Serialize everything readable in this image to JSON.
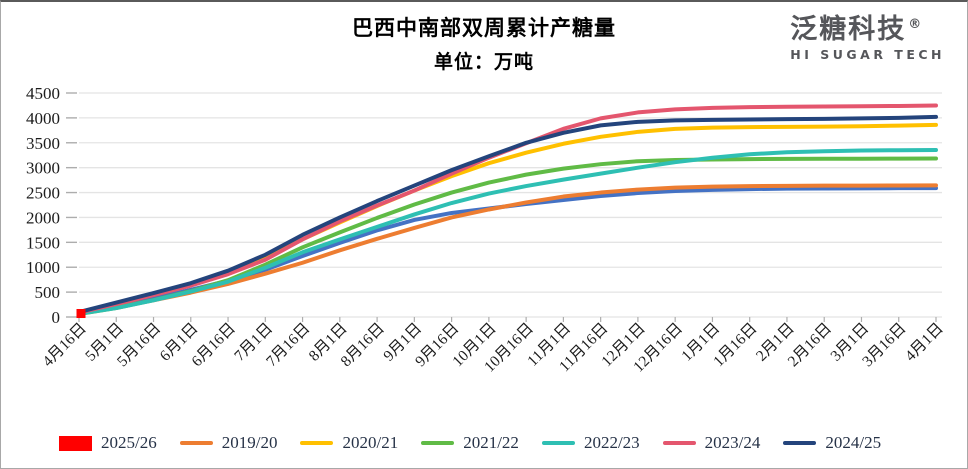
{
  "header": {
    "title": "巴西中南部双周累计产糖量",
    "subtitle": "单位：万吨"
  },
  "logo": {
    "name_cn": "泛糖科技",
    "trademark": "®",
    "name_en": "HI SUGAR TECH"
  },
  "chart_data": {
    "type": "line",
    "title": "巴西中南部双周累计产糖量",
    "unit": "万吨",
    "grid": "horizontal",
    "legend_position": "bottom",
    "x_axis": {
      "labels": [
        "4月16日",
        "5月1日",
        "5月16日",
        "6月1日",
        "6月16日",
        "7月1日",
        "7月16日",
        "8月1日",
        "8月16日",
        "9月1日",
        "9月16日",
        "10月1日",
        "10月16日",
        "11月1日",
        "11月16日",
        "12月1日",
        "12月16日",
        "1月1日",
        "1月16日",
        "2月1日",
        "2月16日",
        "3月1日",
        "3月16日",
        "4月1日"
      ]
    },
    "y_axis": {
      "min": 0,
      "max": 4500,
      "tick_step": 500
    },
    "colors": {
      "grid": "#e4e4e4",
      "axis_tick": "#adadad",
      "axis_label": "#1c1c1c",
      "legend_text": "#263247"
    },
    "series": [
      {
        "name": "2025/26",
        "color": "#ff0000",
        "swatch": "box",
        "marker": "square",
        "legend": true,
        "values": [
          70,
          null,
          null,
          null,
          null,
          null,
          null,
          null,
          null,
          null,
          null,
          null,
          null,
          null,
          null,
          null,
          null,
          null,
          null,
          null,
          null,
          null,
          null,
          null
        ]
      },
      {
        "name": "",
        "color": "#4472c4",
        "swatch": "line",
        "legend": false,
        "values": [
          80,
          215,
          375,
          545,
          730,
          950,
          1225,
          1490,
          1740,
          1950,
          2090,
          2180,
          2270,
          2350,
          2430,
          2490,
          2530,
          2555,
          2570,
          2578,
          2582,
          2585,
          2588,
          2590
        ]
      },
      {
        "name": "2019/20",
        "color": "#ed7d31",
        "swatch": "line",
        "legend": true,
        "values": [
          70,
          190,
          335,
          490,
          665,
          870,
          1090,
          1340,
          1570,
          1790,
          2000,
          2160,
          2300,
          2420,
          2500,
          2560,
          2600,
          2620,
          2630,
          2635,
          2638,
          2640,
          2642,
          2645
        ]
      },
      {
        "name": "2020/21",
        "color": "#ffc000",
        "swatch": "line",
        "legend": true,
        "values": [
          95,
          270,
          450,
          640,
          880,
          1180,
          1560,
          1900,
          2230,
          2540,
          2830,
          3090,
          3300,
          3480,
          3620,
          3720,
          3780,
          3805,
          3815,
          3820,
          3825,
          3832,
          3845,
          3860
        ]
      },
      {
        "name": "2021/22",
        "color": "#60bb46",
        "swatch": "line",
        "legend": true,
        "values": [
          60,
          180,
          340,
          520,
          740,
          1050,
          1400,
          1700,
          1990,
          2260,
          2500,
          2700,
          2860,
          2980,
          3070,
          3130,
          3155,
          3165,
          3172,
          3176,
          3178,
          3180,
          3182,
          3185
        ]
      },
      {
        "name": "2022/23",
        "color": "#2ebfb3",
        "swatch": "line",
        "legend": true,
        "values": [
          65,
          180,
          335,
          510,
          710,
          990,
          1300,
          1560,
          1810,
          2060,
          2290,
          2480,
          2630,
          2760,
          2880,
          3000,
          3110,
          3200,
          3270,
          3310,
          3330,
          3345,
          3350,
          3355
        ]
      },
      {
        "name": "2023/24",
        "color": "#e4566e",
        "swatch": "line",
        "legend": true,
        "values": [
          90,
          260,
          440,
          630,
          860,
          1150,
          1560,
          1920,
          2240,
          2540,
          2880,
          3200,
          3490,
          3780,
          3990,
          4110,
          4170,
          4200,
          4215,
          4225,
          4230,
          4235,
          4240,
          4250
        ]
      },
      {
        "name": "2024/25",
        "color": "#24447c",
        "swatch": "line",
        "legend": true,
        "values": [
          100,
          290,
          480,
          680,
          930,
          1250,
          1650,
          2000,
          2330,
          2640,
          2950,
          3230,
          3500,
          3700,
          3850,
          3920,
          3950,
          3960,
          3968,
          3975,
          3980,
          3990,
          4000,
          4020
        ]
      }
    ]
  }
}
